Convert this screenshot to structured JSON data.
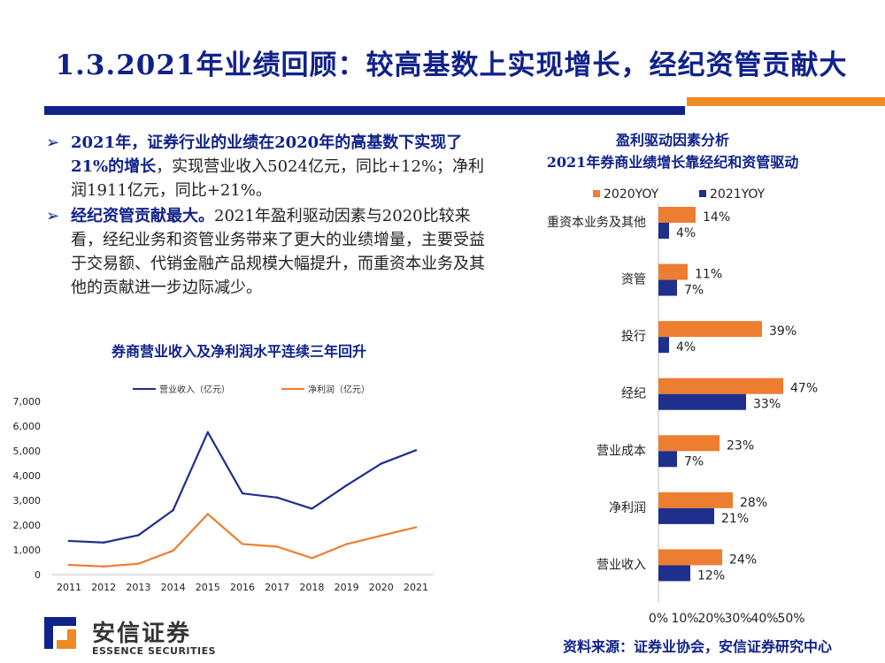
{
  "header": {
    "title": "1.3.2021年业绩回顾：较高基数上实现增长，经纪资管贡献大"
  },
  "bullets": [
    {
      "bold": "2021年，证券行业的业绩在2020年的高基数下实现了21%的增长",
      "text": "，实现营业收入5024亿元，同比+12%；净利润1911亿元，同比+21%。"
    },
    {
      "bold": "经纪资管贡献最大。",
      "text": "2021年盈利驱动因素与2020比较来看，经纪业务和资管业务带来了更大的业绩增量，主要受益于交易额、代销金融产品规模大幅提升，而重资本业务及其他的贡献进一步边际减少。"
    }
  ],
  "chart_data": [
    {
      "type": "line",
      "title": "券商营业收入及净利润水平连续三年回升",
      "x": [
        "2011",
        "2012",
        "2013",
        "2014",
        "2015",
        "2016",
        "2017",
        "2018",
        "2019",
        "2020",
        "2021"
      ],
      "series": [
        {
          "name": "营业收入（亿元）",
          "color": "#1f2f8c",
          "values": [
            1359,
            1295,
            1592,
            2603,
            5752,
            3280,
            3113,
            2663,
            3605,
            4485,
            5024
          ]
        },
        {
          "name": "净利润（亿元）",
          "color": "#ed7d31",
          "values": [
            394,
            329,
            440,
            966,
            2447,
            1234,
            1130,
            666,
            1231,
            1575,
            1911
          ]
        }
      ],
      "ylim": [
        0,
        7000
      ],
      "yticks": [
        0,
        1000,
        2000,
        3000,
        4000,
        5000,
        6000,
        7000
      ],
      "ytick_labels": [
        "0",
        "1,000",
        "2,000",
        "3,000",
        "4,000",
        "5,000",
        "6,000",
        "7,000"
      ],
      "legend_position": "top"
    },
    {
      "type": "bar",
      "orientation": "horizontal",
      "title": "盈利驱动因素分析",
      "subtitle": "2021年券商业绩增长靠经纪和资管驱动",
      "categories": [
        "重资本业务及其他",
        "资管",
        "投行",
        "经纪",
        "营业成本",
        "净利润",
        "营业收入"
      ],
      "series": [
        {
          "name": "2020YOY",
          "color": "#ed7d31",
          "values": [
            14,
            11,
            39,
            47,
            23,
            28,
            24
          ]
        },
        {
          "name": "2021YOY",
          "color": "#1f2f8c",
          "values": [
            4,
            7,
            4,
            33,
            7,
            21,
            12
          ]
        }
      ],
      "xlim": [
        0,
        50
      ],
      "xticks": [
        0,
        10,
        20,
        30,
        40,
        50
      ],
      "xtick_labels": [
        "0%",
        "10%",
        "20%",
        "30%",
        "40%",
        "50%"
      ],
      "legend_position": "top"
    }
  ],
  "footer": {
    "source": "资料来源：证券业协会，安信证券研究中心",
    "logo_cn": "安信证券",
    "logo_en": "ESSENCE SECURITIES"
  }
}
